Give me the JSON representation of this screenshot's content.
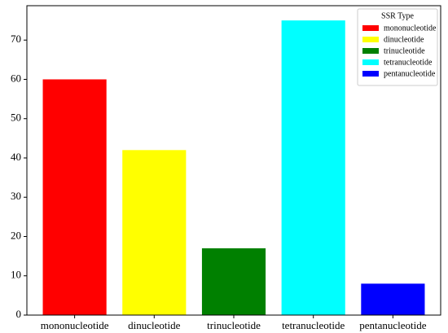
{
  "chart_data": {
    "type": "bar",
    "categories": [
      "mononucleotide",
      "dinucleotide",
      "trinucleotide",
      "tetranucleotide",
      "pentanucleotide"
    ],
    "values": [
      60,
      42,
      17,
      75,
      8
    ],
    "colors": [
      "#ff0000",
      "#ffff00",
      "#008000",
      "#00ffff",
      "#0000ff"
    ],
    "ylim": [
      0,
      78.75
    ],
    "yticks": [
      0,
      10,
      20,
      30,
      40,
      50,
      60,
      70
    ],
    "grid": false,
    "legend_title": "SSR Type",
    "legend_position": "upper right"
  }
}
